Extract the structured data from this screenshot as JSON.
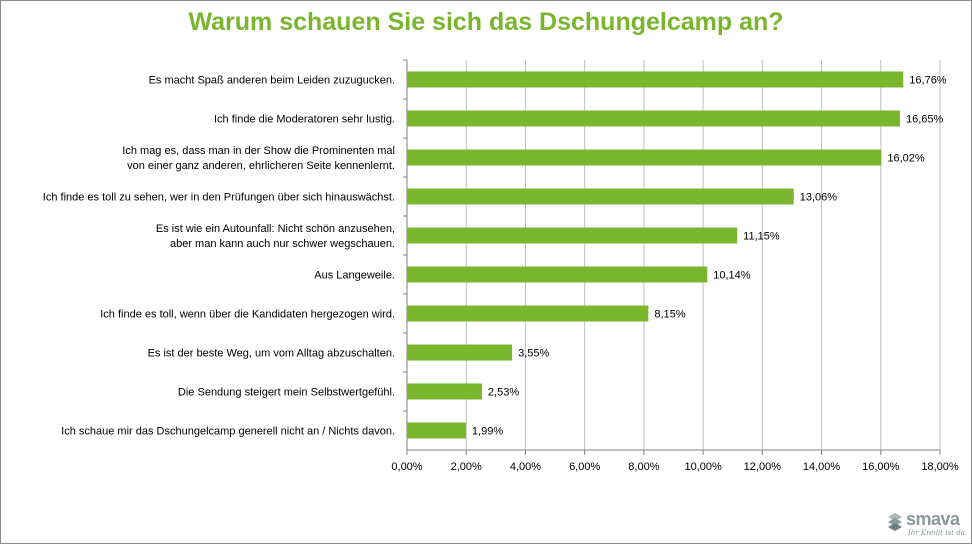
{
  "chart_data": {
    "type": "bar",
    "orientation": "horizontal",
    "title": "Warum schauen Sie sich das Dschungelcamp an?",
    "xlabel": "",
    "ylabel": "",
    "xlim": [
      0,
      18
    ],
    "ticks": [
      0,
      2,
      4,
      6,
      8,
      10,
      12,
      14,
      16,
      18
    ],
    "tick_labels": [
      "0,00%",
      "2,00%",
      "4,00%",
      "6,00%",
      "8,00%",
      "10,00%",
      "12,00%",
      "14,00%",
      "16,00%",
      "18,00%"
    ],
    "grid": true,
    "bar_color": "#7ab52e",
    "title_color": "#7ab52e",
    "categories": [
      [
        "Es macht Spaß anderen beim Leiden zuzugucken."
      ],
      [
        "Ich finde die Moderatoren sehr lustig."
      ],
      [
        "Ich mag es, dass man in der Show die Prominenten mal",
        "von einer ganz anderen, ehrlicheren Seite kennenlernt."
      ],
      [
        "Ich finde es toll zu sehen, wer in den Prüfungen über sich hinauswächst."
      ],
      [
        "Es ist wie ein Autounfall: Nicht schön anzusehen,",
        "aber man kann auch nur schwer wegschauen."
      ],
      [
        "Aus Langeweile."
      ],
      [
        "Ich finde es toll, wenn über die Kandidaten hergezogen wird."
      ],
      [
        "Es ist der beste Weg, um vom Alltag abzuschalten."
      ],
      [
        "Die Sendung steigert mein Selbstwertgefühl."
      ],
      [
        "Ich schaue mir das Dschungelcamp generell nicht an / Nichts davon."
      ]
    ],
    "values": [
      16.76,
      16.65,
      16.02,
      13.06,
      11.15,
      10.14,
      8.15,
      3.55,
      2.53,
      1.99
    ],
    "value_labels": [
      "16,76%",
      "16,65%",
      "16,02%",
      "13,06%",
      "11,15%",
      "10,14%",
      "8,15%",
      "3,55%",
      "2,53%",
      "1,99%"
    ]
  },
  "logo": {
    "name": "smava",
    "tagline": "Ihr Kredit ist da.",
    "color": "#8a9a9a"
  }
}
